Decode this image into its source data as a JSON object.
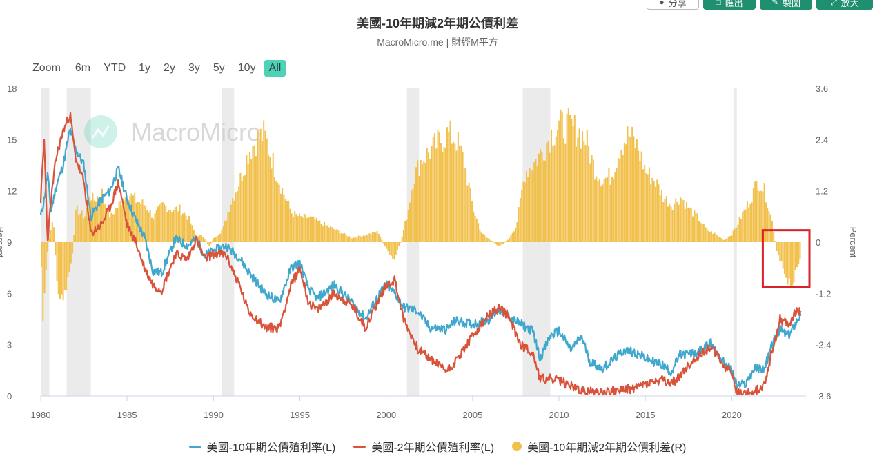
{
  "toolbar": {
    "share_label": "分享",
    "buttons": [
      {
        "label": "匯出"
      },
      {
        "label": "製圖"
      },
      {
        "label": "放大"
      }
    ]
  },
  "header": {
    "title": "美國-10年期減2年期公債利差",
    "subtitle": "MacroMicro.me | 財經M平方"
  },
  "zoom": {
    "label": "Zoom",
    "options": [
      "6m",
      "YTD",
      "1y",
      "2y",
      "3y",
      "5y",
      "10y",
      "All"
    ],
    "active": "All"
  },
  "watermark": "MacroMicro",
  "colors": {
    "ten_year": "#3fa8cc",
    "two_year": "#d9533b",
    "spread": "#f2c04c",
    "recession": "#ebebeb",
    "highlight_box": "#d9232a"
  },
  "chart_data": {
    "type": "line",
    "x_ticks": [
      "1980",
      "1985",
      "1990",
      "1995",
      "2000",
      "2005",
      "2010",
      "2015",
      "2020"
    ],
    "left_axis": {
      "title": "Percent",
      "min": 0,
      "max": 18,
      "ticks": [
        "0",
        "3",
        "6",
        "9",
        "12",
        "15",
        "18"
      ]
    },
    "right_axis": {
      "title": "Percent",
      "min": -3.6,
      "max": 3.6,
      "ticks": [
        "-3.6",
        "-2.4",
        "-1.2",
        "0",
        "1.2",
        "2.4",
        "3.6"
      ]
    },
    "recessions": [
      [
        1980.0,
        1980.5
      ],
      [
        1981.5,
        1982.9
      ],
      [
        1990.5,
        1991.2
      ],
      [
        2001.2,
        2001.9
      ],
      [
        2007.9,
        2009.5
      ],
      [
        2020.1,
        2020.3
      ]
    ],
    "highlight_box": {
      "x_range": [
        2021.8,
        2024.5
      ],
      "y_range_right": [
        -1.05,
        0.28
      ]
    },
    "series": [
      {
        "name": "美國-10年期公債殖利率(L)",
        "axis": "left",
        "x": [
          1980.0,
          1980.2,
          1980.4,
          1980.6,
          1980.9,
          1981.3,
          1981.7,
          1982.0,
          1982.5,
          1982.9,
          1983.5,
          1984.0,
          1984.5,
          1985.0,
          1985.5,
          1986.0,
          1986.5,
          1987.0,
          1987.8,
          1988.5,
          1989.0,
          1989.5,
          1990.0,
          1990.7,
          1991.5,
          1992.0,
          1993.0,
          1993.8,
          1994.5,
          1995.0,
          1995.5,
          1996.0,
          1997.0,
          1998.0,
          1998.8,
          1999.5,
          2000.0,
          2000.5,
          2001.0,
          2001.8,
          2002.5,
          2003.5,
          2004.0,
          2005.0,
          2006.0,
          2006.5,
          2007.0,
          2007.8,
          2008.5,
          2008.9,
          2009.5,
          2010.0,
          2010.7,
          2011.3,
          2011.8,
          2012.5,
          2013.0,
          2013.8,
          2014.5,
          2015.0,
          2016.0,
          2016.5,
          2017.0,
          2018.0,
          2018.8,
          2019.5,
          2020.0,
          2020.3,
          2020.8,
          2021.3,
          2021.9,
          2022.3,
          2022.8,
          2023.3,
          2023.8,
          2024.0
        ],
        "values": [
          10.5,
          11.5,
          13.0,
          10.8,
          12.3,
          13.5,
          15.6,
          14.5,
          13.5,
          10.5,
          11.5,
          12.0,
          13.3,
          11.5,
          10.3,
          9.3,
          7.3,
          7.2,
          9.2,
          8.8,
          9.2,
          8.2,
          8.5,
          8.8,
          8.1,
          7.3,
          6.0,
          5.5,
          7.5,
          7.8,
          6.3,
          5.7,
          6.5,
          5.5,
          4.5,
          5.8,
          6.5,
          6.0,
          5.2,
          5.0,
          4.0,
          3.9,
          4.4,
          4.2,
          4.5,
          5.1,
          4.7,
          4.2,
          3.8,
          2.2,
          3.5,
          3.8,
          2.7,
          3.5,
          2.0,
          1.6,
          2.0,
          2.7,
          2.5,
          2.2,
          1.8,
          1.4,
          2.4,
          2.5,
          3.1,
          2.0,
          1.5,
          0.6,
          0.7,
          1.6,
          1.6,
          2.9,
          3.9,
          3.5,
          4.5,
          4.8
        ]
      },
      {
        "name": "美國-2年期公債殖利率(L)",
        "axis": "left",
        "x": [
          1980.0,
          1980.2,
          1980.4,
          1980.6,
          1980.9,
          1981.3,
          1981.7,
          1982.0,
          1982.5,
          1982.9,
          1983.5,
          1984.0,
          1984.5,
          1985.0,
          1985.5,
          1986.0,
          1986.5,
          1987.0,
          1987.8,
          1988.5,
          1989.0,
          1989.5,
          1990.0,
          1990.7,
          1991.5,
          1992.0,
          1993.0,
          1993.8,
          1994.5,
          1995.0,
          1995.5,
          1996.0,
          1997.0,
          1998.0,
          1998.8,
          1999.5,
          2000.0,
          2000.5,
          2001.0,
          2001.8,
          2002.5,
          2003.5,
          2004.0,
          2005.0,
          2006.0,
          2006.5,
          2007.0,
          2007.8,
          2008.5,
          2008.9,
          2009.5,
          2010.0,
          2010.7,
          2011.3,
          2011.8,
          2012.5,
          2013.0,
          2013.8,
          2014.5,
          2015.0,
          2016.0,
          2016.5,
          2017.0,
          2018.0,
          2018.8,
          2019.5,
          2020.0,
          2020.3,
          2020.8,
          2021.3,
          2021.9,
          2022.3,
          2022.8,
          2023.3,
          2023.8,
          2024.0
        ],
        "values": [
          11.5,
          15.0,
          9.0,
          11.5,
          14.0,
          15.5,
          16.5,
          14.0,
          12.5,
          9.5,
          10.0,
          11.0,
          12.5,
          10.0,
          9.0,
          7.5,
          6.5,
          6.2,
          8.3,
          8.0,
          9.2,
          8.0,
          8.3,
          8.3,
          6.5,
          5.0,
          4.0,
          4.0,
          6.5,
          7.5,
          5.5,
          5.0,
          6.0,
          5.3,
          4.0,
          5.5,
          6.5,
          6.8,
          4.5,
          2.8,
          2.2,
          1.5,
          2.0,
          3.5,
          4.8,
          5.1,
          4.8,
          3.0,
          2.5,
          1.0,
          1.0,
          0.9,
          0.6,
          0.3,
          0.25,
          0.25,
          0.3,
          0.35,
          0.5,
          0.7,
          0.9,
          0.7,
          1.2,
          2.3,
          2.9,
          1.8,
          1.4,
          0.15,
          0.15,
          0.2,
          0.7,
          2.5,
          4.5,
          4.2,
          5.1,
          4.8
        ]
      },
      {
        "name": "美國-10年期減2年期公債利差(R)",
        "axis": "right",
        "type": "bar",
        "x": [
          1980.0,
          1980.1,
          1980.3,
          1980.5,
          1980.7,
          1980.9,
          1981.2,
          1981.5,
          1981.8,
          1982.0,
          1982.5,
          1982.8,
          1983.0,
          1983.5,
          1984.0,
          1984.5,
          1985.0,
          1985.5,
          1986.0,
          1986.5,
          1987.0,
          1987.5,
          1988.0,
          1988.5,
          1989.0,
          1989.3,
          1989.7,
          1990.0,
          1990.5,
          1991.0,
          1991.5,
          1992.0,
          1992.5,
          1992.9,
          1993.5,
          1994.0,
          1994.5,
          1995.0,
          1995.5,
          1996.0,
          1997.0,
          1998.0,
          1998.5,
          1999.0,
          1999.5,
          2000.0,
          2000.4,
          2000.8,
          2001.2,
          2001.5,
          2002.0,
          2002.5,
          2003.0,
          2003.5,
          2004.0,
          2004.5,
          2005.0,
          2005.5,
          2006.0,
          2006.5,
          2007.0,
          2007.5,
          2008.0,
          2008.5,
          2009.0,
          2009.5,
          2010.0,
          2010.5,
          2011.0,
          2011.5,
          2012.0,
          2012.5,
          2013.0,
          2013.5,
          2014.0,
          2014.5,
          2015.0,
          2015.5,
          2016.0,
          2016.5,
          2017.0,
          2017.5,
          2018.0,
          2018.5,
          2019.0,
          2019.5,
          2020.0,
          2020.5,
          2021.0,
          2021.5,
          2021.9,
          2022.3,
          2022.6,
          2022.9,
          2023.2,
          2023.5,
          2023.8,
          2024.0
        ],
        "values": [
          -0.6,
          -2.0,
          -0.5,
          0.3,
          0.5,
          -1.0,
          -1.5,
          -1.0,
          -0.3,
          0.8,
          0.6,
          1.2,
          1.0,
          1.2,
          0.6,
          0.9,
          1.2,
          1.0,
          0.9,
          0.6,
          0.9,
          0.8,
          0.8,
          0.6,
          0.1,
          0.2,
          -0.1,
          0.1,
          0.3,
          1.0,
          1.5,
          2.2,
          2.5,
          2.6,
          1.8,
          1.2,
          0.7,
          0.6,
          0.6,
          0.5,
          0.3,
          0.1,
          0.15,
          0.2,
          0.25,
          -0.2,
          -0.45,
          0.0,
          0.7,
          1.5,
          2.0,
          2.2,
          2.4,
          2.6,
          2.5,
          1.9,
          0.8,
          0.2,
          0.05,
          -0.1,
          0.05,
          0.4,
          1.7,
          1.9,
          2.2,
          2.6,
          2.8,
          2.8,
          2.7,
          2.5,
          1.8,
          1.5,
          1.6,
          2.3,
          2.6,
          2.3,
          1.7,
          1.5,
          1.1,
          0.9,
          1.1,
          0.8,
          0.6,
          0.3,
          0.2,
          0.05,
          0.2,
          0.6,
          1.0,
          1.5,
          1.2,
          0.5,
          -0.3,
          -0.6,
          -0.9,
          -1.0,
          -0.6,
          -0.3
        ]
      }
    ]
  }
}
